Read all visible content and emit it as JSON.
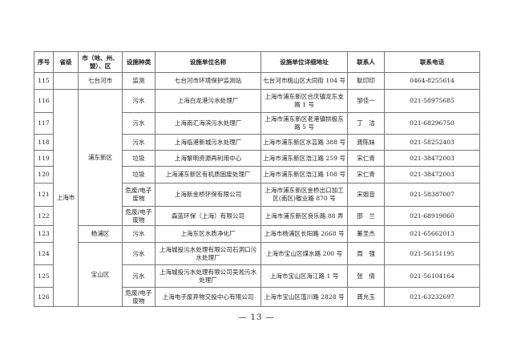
{
  "headers": [
    "序号",
    "省级",
    "市（地、州、盟）、区",
    "设施种类",
    "设施单位名称",
    "设施单位详细地址",
    "联系人",
    "联系电话"
  ],
  "provinces": [
    {
      "name": "",
      "start": 0,
      "span": 1
    },
    {
      "name": "上海市",
      "start": 1,
      "span": 11
    }
  ],
  "cities": [
    {
      "name": "七台河市",
      "start": 0,
      "span": 1
    },
    {
      "name": "浦东新区",
      "start": 1,
      "span": 7
    },
    {
      "name": "杨浦区",
      "start": 8,
      "span": 1
    },
    {
      "name": "宝山区",
      "start": 9,
      "span": 3
    }
  ],
  "rows": [
    {
      "no": "115",
      "type": "监测",
      "name": "七台河市环境保护监测站",
      "address": "七台河市桃山区大同街 104 号",
      "contact": "耿印印",
      "phone": "0464-8255614"
    },
    {
      "no": "116",
      "type": "污水",
      "name": "上海白龙港污水处理厂",
      "address": "上海市浦东新区合庆镇龙东支路 1 号",
      "contact": "邹佳一",
      "phone": "021-58975685"
    },
    {
      "no": "117",
      "type": "污水",
      "name": "上海南汇海滨污水处理厂",
      "address": "上海市浦东新区老港镇拱极东路 5 号",
      "contact": "丁　洁",
      "phone": "021-68296750"
    },
    {
      "no": "118",
      "type": "污水",
      "name": "上海临港新城污水处理厂",
      "address": "上海市浦东新区水芸路 388 号",
      "contact": "龚陈妹",
      "phone": "021-58252403"
    },
    {
      "no": "119",
      "type": "垃圾",
      "name": "上海黎明资源再利用中心",
      "address": "上海市浦东新区浩江路 259 号",
      "contact": "宋仁青",
      "phone": "021-38472003"
    },
    {
      "no": "120",
      "type": "垃圾",
      "name": "上海浦东新区有机质固废处理厂",
      "address": "上海市浦东新区浩江路 108 号",
      "contact": "宋仁青",
      "phone": "021-38472003"
    },
    {
      "no": "121",
      "type": "危废/电子废物",
      "name": "上海新金桥环保有限公司",
      "address": "上海市浦东新区金桥出口加工区(南区)敬业路 870 号",
      "contact": "宋姐音",
      "phone": "021-58387007"
    },
    {
      "no": "122",
      "type": "危废/电子废物",
      "name": "森蓝环保（上海）有限公司",
      "address": "上海市浦东新区良乐路 88 弄",
      "contact": "邵　兰",
      "phone": "021-68919060"
    },
    {
      "no": "123",
      "type": "污水",
      "name": "上海东区水质净化厂",
      "address": "上海市杨浦区长阳路 2668 号",
      "contact": "董圣杰",
      "phone": "021-65662013"
    },
    {
      "no": "124",
      "type": "污水",
      "name": "上海城投污水处理有限公司石洞口污水处理厂",
      "address": "上海市宝山区煤水路 200 号",
      "contact": "周　强",
      "phone": "021-56151195"
    },
    {
      "no": "125",
      "type": "污水",
      "name": "上海城投污水处理有限公司吴淞污水处理厂",
      "address": "上海市宝山区海江路 1 号",
      "contact": "张　倩",
      "phone": "021-56104164"
    },
    {
      "no": "126",
      "type": "危废/电子废物",
      "name": "上海电子废弃物交投中心有限公司",
      "address": "上海市宝山区蕰川路 2828 号",
      "contact": "龚允玉",
      "phone": "021-63232697"
    }
  ],
  "footer": {
    "page": "— 13 —"
  }
}
